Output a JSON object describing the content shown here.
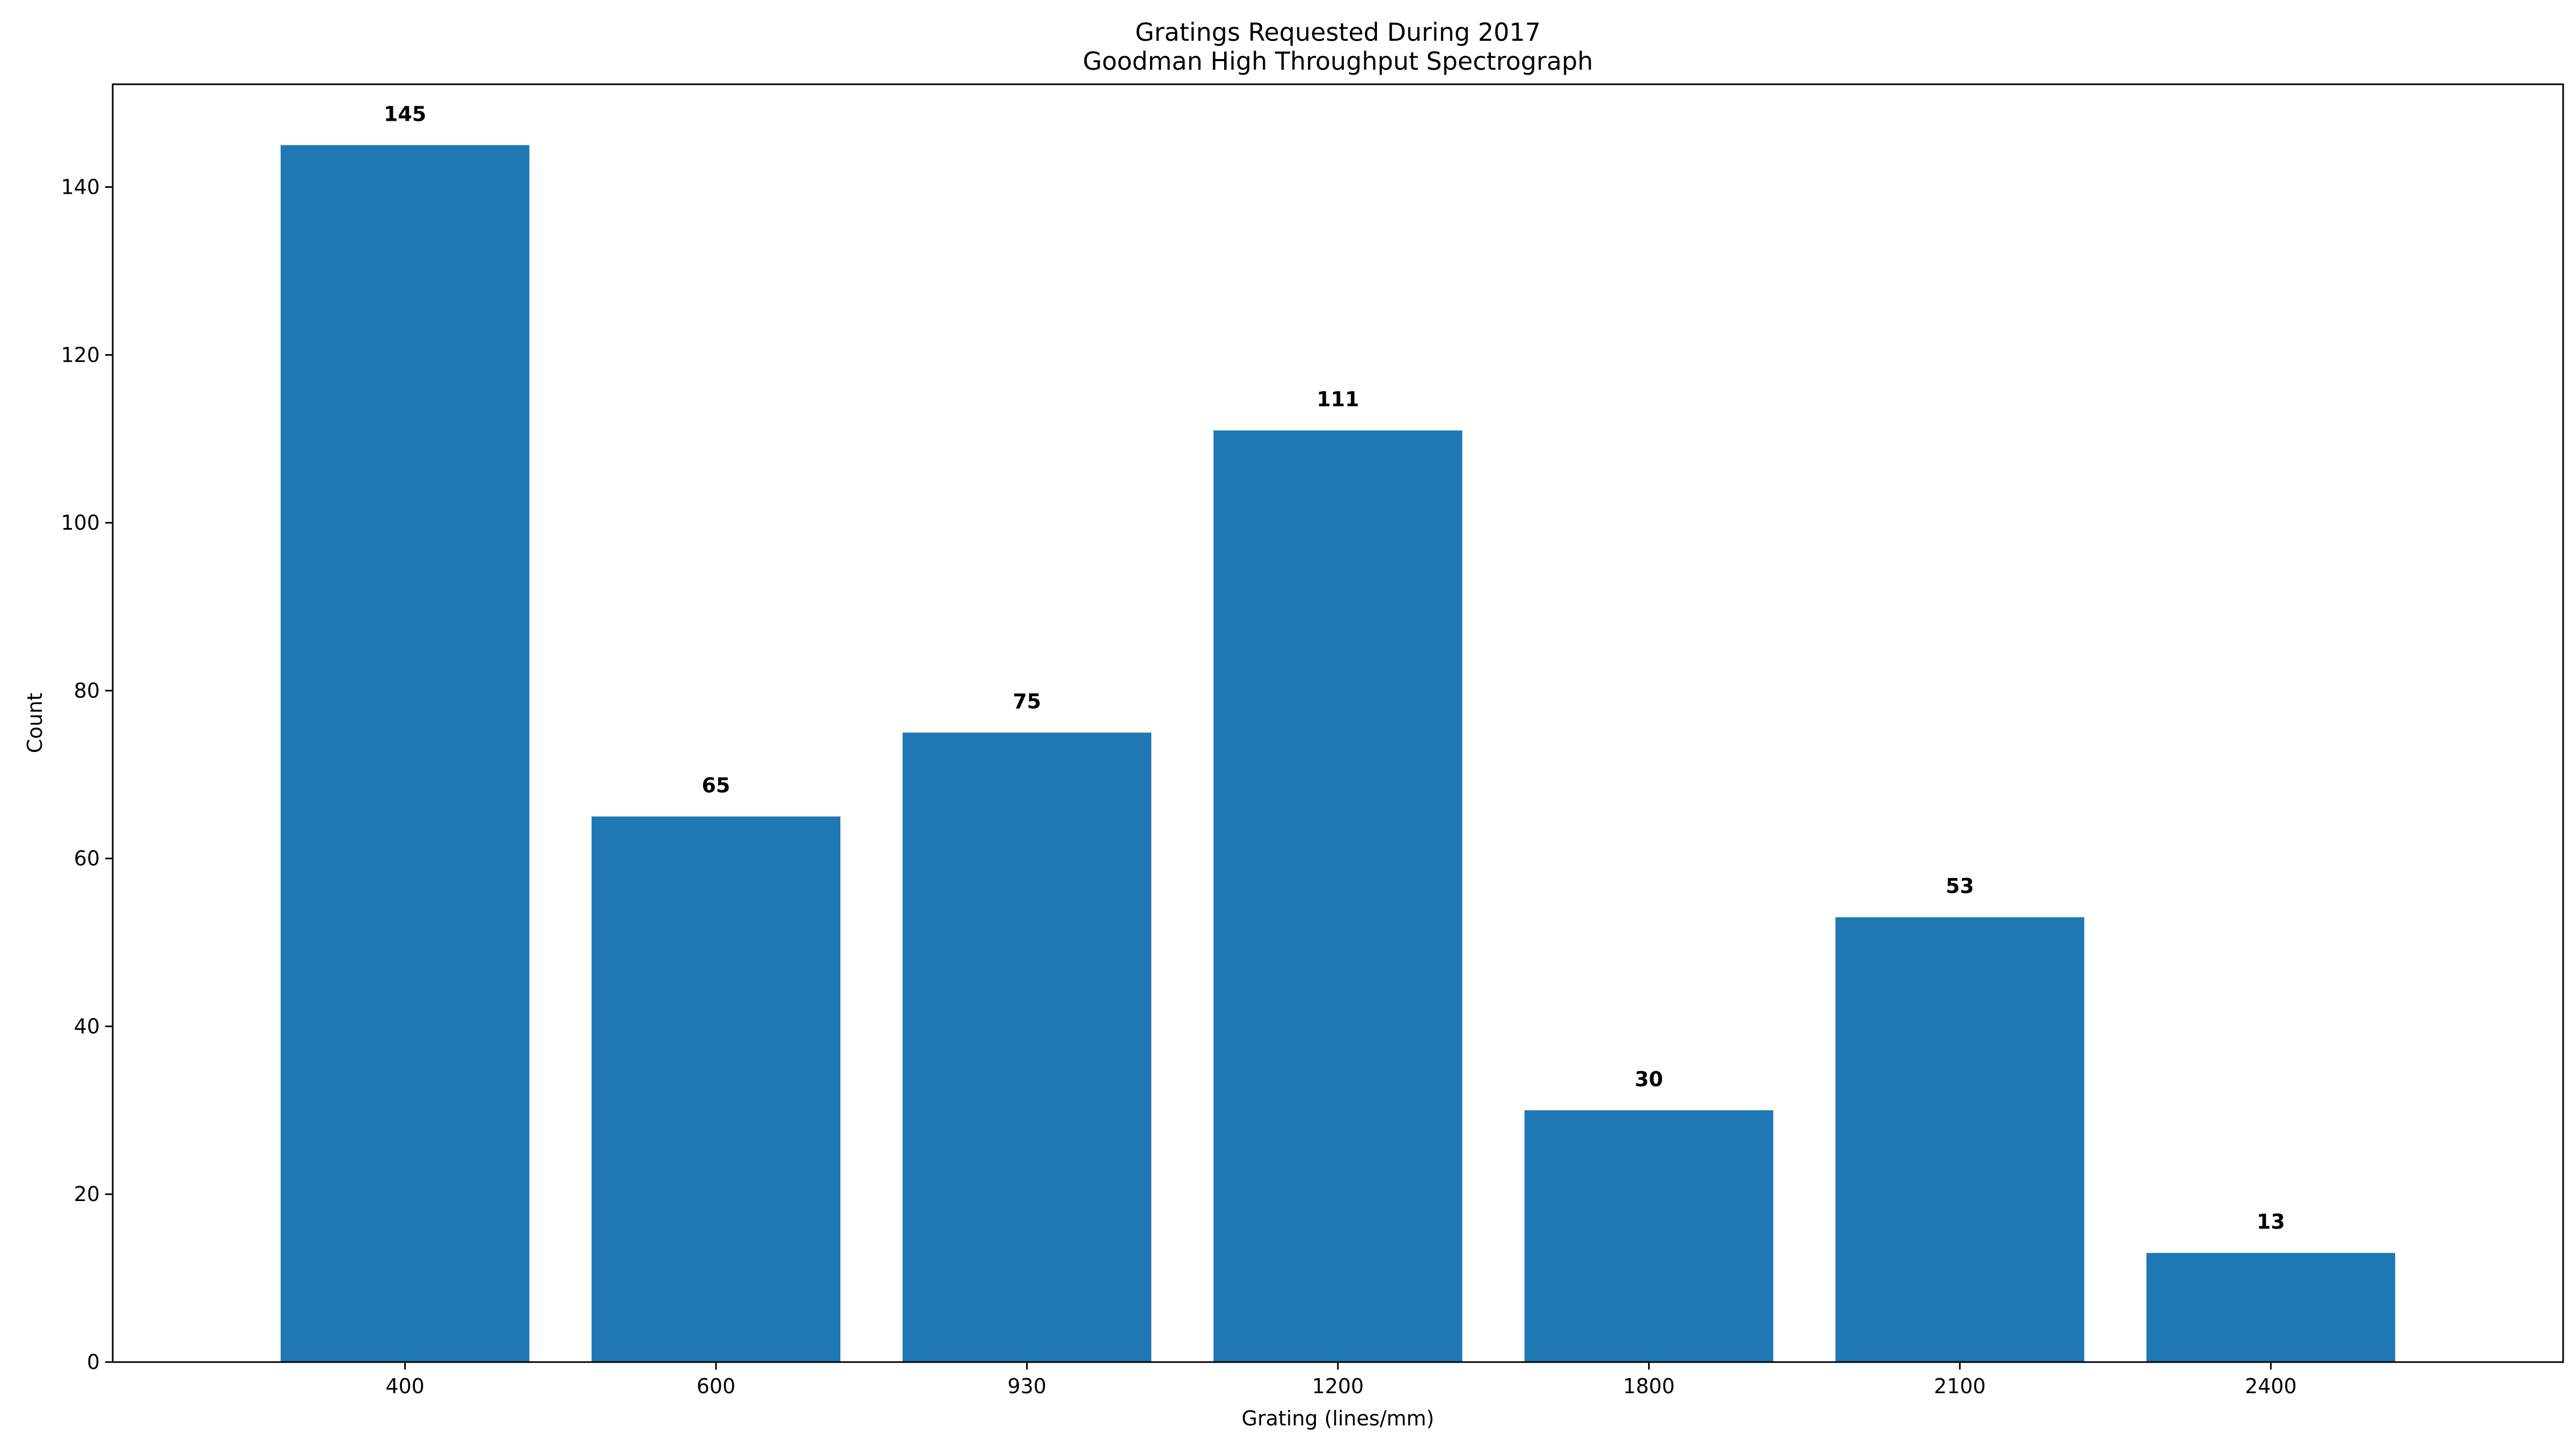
{
  "chart_data": {
    "type": "bar",
    "title": "Gratings Requested During 2017",
    "subtitle": "Goodman High Throughput Spectrograph",
    "xlabel": "Grating (lines/mm)",
    "ylabel": "Count",
    "categories": [
      "400",
      "600",
      "930",
      "1200",
      "1800",
      "2100",
      "2400"
    ],
    "values": [
      145,
      65,
      75,
      111,
      30,
      53,
      13
    ],
    "data_labels": [
      "145",
      "65",
      "75",
      "111",
      "30",
      "53",
      "13"
    ],
    "ylim": [
      0,
      152.25
    ],
    "yticks": [
      0,
      20,
      40,
      60,
      80,
      100,
      120,
      140
    ],
    "ytick_labels": [
      "0",
      "20",
      "40",
      "60",
      "80",
      "100",
      "120",
      "140"
    ],
    "grid": false,
    "legend": "none",
    "bar_color": "#1f77b4"
  }
}
